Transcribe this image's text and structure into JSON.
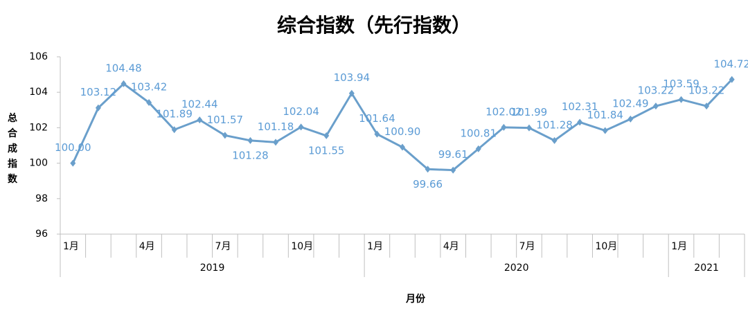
{
  "chart_data": {
    "type": "line",
    "title": "综合指数（先行指数）",
    "y_label": "总合成指数",
    "x_label": "月份",
    "groups": [
      {
        "name": "2019",
        "categories": [
          "1月",
          null,
          null,
          "4月",
          null,
          null,
          "7月",
          null,
          null,
          "10月",
          null,
          null
        ]
      },
      {
        "name": "2020",
        "categories": [
          "1月",
          null,
          null,
          "4月",
          null,
          null,
          "7月",
          null,
          null,
          "10月",
          null,
          null
        ]
      },
      {
        "name": "2021",
        "categories": [
          "1月",
          null,
          null
        ]
      }
    ],
    "series": [
      {
        "name": "综合指数（先行指数）",
        "color": "#6a9fcb",
        "values": [
          100.0,
          103.12,
          104.48,
          103.42,
          101.89,
          102.44,
          101.57,
          101.28,
          101.18,
          102.04,
          101.55,
          103.94,
          101.64,
          100.9,
          99.66,
          99.61,
          100.81,
          102.02,
          101.99,
          101.28,
          102.31,
          101.84,
          102.49,
          103.22,
          103.59,
          103.22,
          104.72
        ],
        "value_labels": [
          "100.00",
          "103.12",
          "104.48",
          "103.42",
          "101.89",
          "102.44",
          "101.57",
          "101.28",
          "101.18",
          "102.04",
          "101.55",
          "103.94",
          "101.64",
          "100.90",
          "99.66",
          "99.61",
          "100.81",
          "102.02",
          "101.99",
          "101.28",
          "102.31",
          "101.84",
          "102.49",
          "103.22",
          "103.59",
          "103.22",
          "104.72"
        ]
      }
    ],
    "ylim": [
      96,
      106
    ],
    "yticks": [
      96,
      98,
      100,
      102,
      104,
      106
    ],
    "label_color": "#5b9bd5"
  }
}
